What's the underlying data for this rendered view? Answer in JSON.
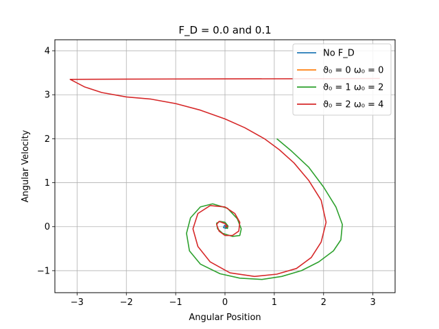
{
  "chart_data": {
    "type": "line",
    "title": "F_D = 0.0 and 0.1",
    "xlabel": "Angular Position",
    "ylabel": "Angular Velocity",
    "xlim": [
      -3.45,
      3.45
    ],
    "ylim": [
      -1.5,
      4.25
    ],
    "xticks": [
      -3,
      -2,
      -1,
      0,
      1,
      2,
      3
    ],
    "xtick_labels": [
      "−3",
      "−2",
      "−1",
      "0",
      "1",
      "2",
      "3"
    ],
    "yticks": [
      -1,
      0,
      1,
      2,
      3,
      4
    ],
    "ytick_labels": [
      "−1",
      "0",
      "1",
      "2",
      "3",
      "4"
    ],
    "grid": true,
    "legend_position": "upper-right",
    "series": [
      {
        "name": "No F_D",
        "color": "#1f77b4",
        "x": [
          0,
          0.05,
          0.02,
          -0.03,
          -0.01,
          0.02,
          0
        ],
        "y": [
          0,
          0.02,
          -0.04,
          -0.02,
          0.03,
          0.01,
          0
        ]
      },
      {
        "name": "ϑ₀ = 0  ω₀ = 0",
        "color": "#ff7f0e",
        "x": [
          0,
          0
        ],
        "y": [
          0,
          0
        ]
      },
      {
        "name": "ϑ₀ = 1  ω₀ = 2",
        "color": "#2ca02c",
        "x": [
          1.05,
          1.35,
          1.7,
          2.0,
          2.25,
          2.38,
          2.35,
          2.2,
          1.9,
          1.55,
          1.15,
          0.75,
          0.3,
          -0.1,
          -0.5,
          -0.72,
          -0.78,
          -0.7,
          -0.5,
          -0.25,
          0.05,
          0.25,
          0.33,
          0.3,
          0.15,
          -0.05,
          -0.15,
          -0.17,
          -0.1,
          0.0,
          0.06,
          0.05,
          0.0
        ],
        "y": [
          2.0,
          1.72,
          1.35,
          0.9,
          0.45,
          0.05,
          -0.3,
          -0.55,
          -0.8,
          -1.0,
          -1.13,
          -1.2,
          -1.17,
          -1.07,
          -0.85,
          -0.55,
          -0.15,
          0.2,
          0.45,
          0.52,
          0.42,
          0.18,
          -0.05,
          -0.2,
          -0.22,
          -0.15,
          -0.05,
          0.08,
          0.12,
          0.1,
          0.02,
          -0.04,
          0.0
        ]
      },
      {
        "name": "ϑ₀ = 2  ω₀ = 4",
        "color": "#d62728",
        "x": [
          3.14,
          2.0,
          0.0,
          -2.0,
          -3.14,
          -2.85,
          -2.5,
          -2.0,
          -1.5,
          -1.0,
          -0.5,
          0.0,
          0.4,
          0.8,
          1.1,
          1.4,
          1.7,
          1.95,
          2.05,
          1.95,
          1.75,
          1.45,
          1.05,
          0.6,
          0.1,
          -0.3,
          -0.55,
          -0.65,
          -0.55,
          -0.3,
          0.0,
          0.2,
          0.3,
          0.28,
          0.15,
          0.0,
          -0.12,
          -0.17,
          -0.12,
          0.0,
          0.05,
          0.0
        ],
        "y": [
          3.37,
          3.365,
          3.36,
          3.355,
          3.35,
          3.18,
          3.05,
          2.95,
          2.9,
          2.8,
          2.65,
          2.45,
          2.25,
          2.0,
          1.75,
          1.45,
          1.05,
          0.6,
          0.1,
          -0.35,
          -0.7,
          -0.95,
          -1.08,
          -1.13,
          -1.05,
          -0.8,
          -0.45,
          -0.05,
          0.3,
          0.48,
          0.45,
          0.3,
          0.1,
          -0.1,
          -0.2,
          -0.2,
          -0.1,
          0.05,
          0.12,
          0.07,
          0.0,
          0.0
        ]
      }
    ]
  }
}
